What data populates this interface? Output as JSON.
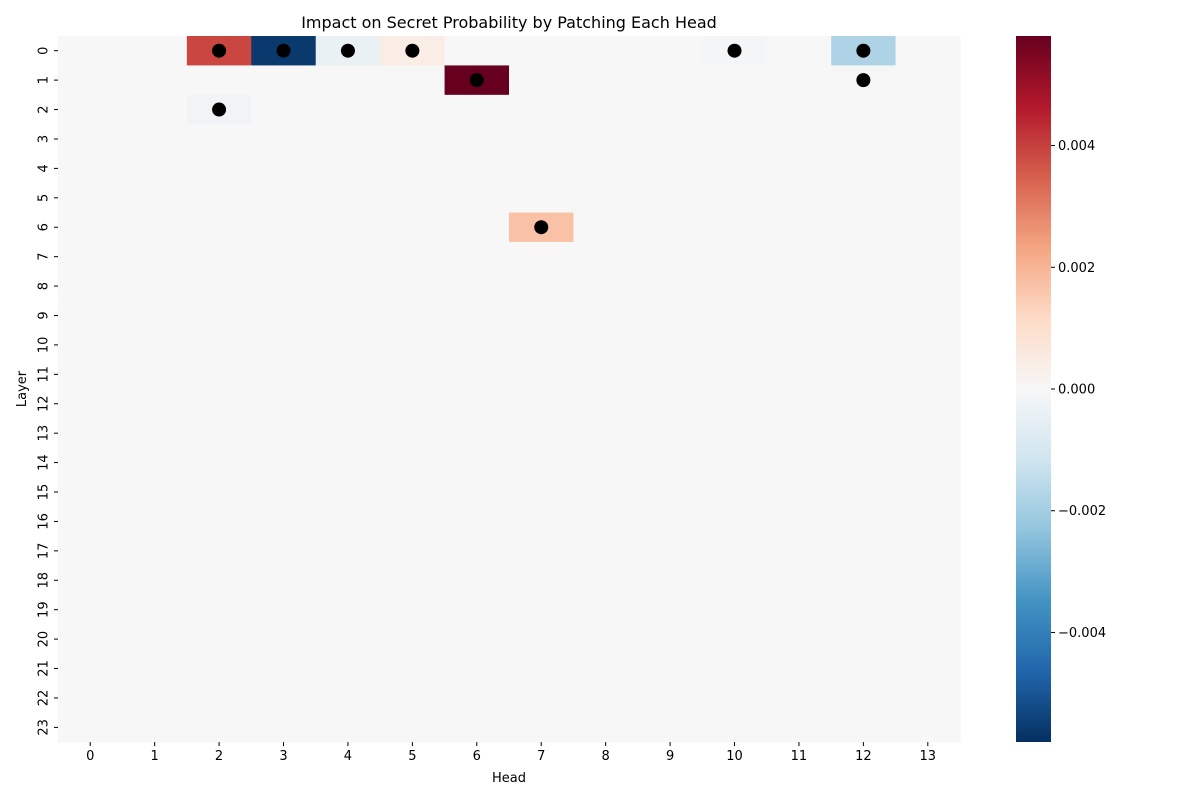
{
  "chart_data": {
    "type": "heatmap",
    "title": "Impact on Secret Probability by Patching Each Head",
    "xlabel": "Head",
    "ylabel": "Layer",
    "x_categories": [
      "0",
      "1",
      "2",
      "3",
      "4",
      "5",
      "6",
      "7",
      "8",
      "9",
      "10",
      "11",
      "12",
      "13"
    ],
    "y_categories": [
      "0",
      "1",
      "2",
      "3",
      "4",
      "5",
      "6",
      "7",
      "8",
      "9",
      "10",
      "11",
      "12",
      "13",
      "14",
      "15",
      "16",
      "17",
      "18",
      "19",
      "20",
      "21",
      "22",
      "23"
    ],
    "colormap": "RdBu_r",
    "value_range": [
      -0.0058,
      0.0058
    ],
    "colorbar_ticks": [
      {
        "value": 0.004,
        "label": "0.004"
      },
      {
        "value": 0.002,
        "label": "0.002"
      },
      {
        "value": 0.0,
        "label": "0.000"
      },
      {
        "value": -0.002,
        "label": "−0.002"
      },
      {
        "value": -0.004,
        "label": "−0.004"
      }
    ],
    "default_value": 0.0,
    "cells": [
      {
        "layer": 0,
        "head": 2,
        "value": 0.0039
      },
      {
        "layer": 0,
        "head": 3,
        "value": -0.0056
      },
      {
        "layer": 0,
        "head": 4,
        "value": -0.0004
      },
      {
        "layer": 0,
        "head": 5,
        "value": 0.0004
      },
      {
        "layer": 0,
        "head": 10,
        "value": -0.0001
      },
      {
        "layer": 0,
        "head": 12,
        "value": -0.0018
      },
      {
        "layer": 1,
        "head": 6,
        "value": 0.0058
      },
      {
        "layer": 1,
        "head": 12,
        "value": 3e-05
      },
      {
        "layer": 2,
        "head": 2,
        "value": -0.0002
      },
      {
        "layer": 6,
        "head": 7,
        "value": 0.0017
      }
    ],
    "markers": [
      {
        "layer": 0,
        "head": 2
      },
      {
        "layer": 0,
        "head": 3
      },
      {
        "layer": 0,
        "head": 4
      },
      {
        "layer": 0,
        "head": 5
      },
      {
        "layer": 0,
        "head": 10
      },
      {
        "layer": 0,
        "head": 12
      },
      {
        "layer": 1,
        "head": 6
      },
      {
        "layer": 1,
        "head": 12
      },
      {
        "layer": 2,
        "head": 2
      },
      {
        "layer": 6,
        "head": 7
      }
    ],
    "marker_color": "#000000",
    "grid": false
  }
}
